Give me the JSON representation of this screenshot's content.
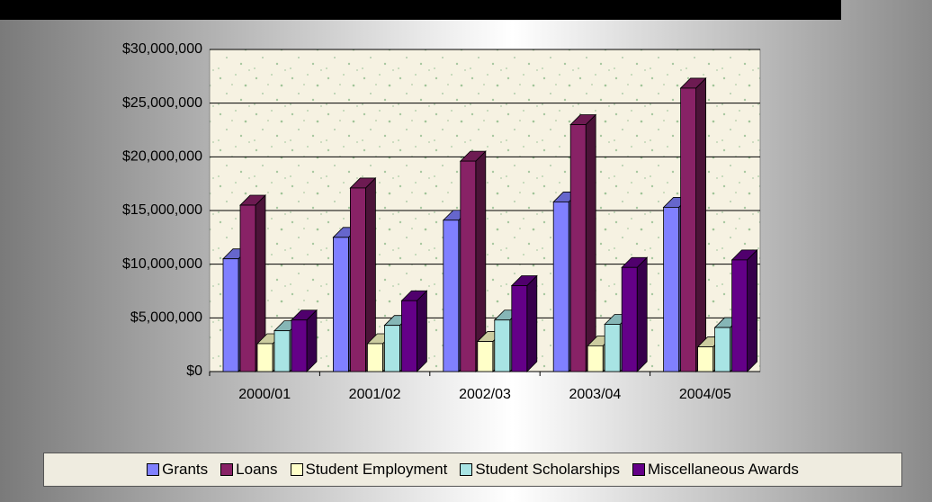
{
  "chart_data": {
    "type": "bar3d",
    "categories": [
      "2000/01",
      "2001/02",
      "2002/03",
      "2003/04",
      "2004/05"
    ],
    "series": [
      {
        "name": "Grants",
        "color": "#8080ff",
        "values": [
          10500000,
          12500000,
          14100000,
          15800000,
          15300000
        ]
      },
      {
        "name": "Loans",
        "color": "#882266",
        "values": [
          15500000,
          17100000,
          19600000,
          23000000,
          26400000
        ]
      },
      {
        "name": "Student Employment",
        "color": "#ffffc8",
        "values": [
          2600000,
          2600000,
          2800000,
          2400000,
          2300000
        ]
      },
      {
        "name": "Student Scholarships",
        "color": "#a8e4e4",
        "values": [
          3800000,
          4300000,
          4800000,
          4400000,
          4100000
        ]
      },
      {
        "name": "Miscellaneous Awards",
        "color": "#640088",
        "values": [
          4800000,
          6600000,
          8000000,
          9700000,
          10400000
        ]
      }
    ],
    "ylim": [
      0,
      30000000
    ],
    "yticks": [
      {
        "value": 0,
        "label": "$0"
      },
      {
        "value": 5000000,
        "label": "$5,000,000"
      },
      {
        "value": 10000000,
        "label": "$10,000,000"
      },
      {
        "value": 15000000,
        "label": "$15,000,000"
      },
      {
        "value": 20000000,
        "label": "$20,000,000"
      },
      {
        "value": 25000000,
        "label": "$25,000,000"
      },
      {
        "value": 30000000,
        "label": "$30,000,000"
      }
    ],
    "grid": true,
    "legend": "bottom"
  }
}
